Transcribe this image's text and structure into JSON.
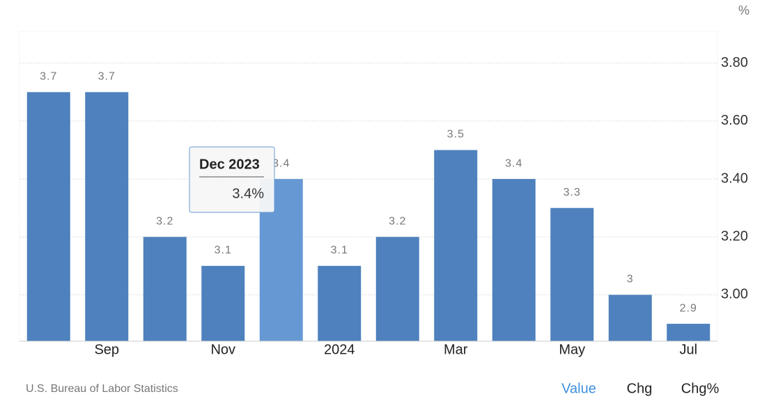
{
  "chart_data": {
    "type": "bar",
    "unit": "%",
    "categories": [
      null,
      "Sep",
      null,
      "Nov",
      null,
      "2024",
      null,
      "Mar",
      null,
      "May",
      null,
      "Jul"
    ],
    "values": [
      3.7,
      3.7,
      3.2,
      3.1,
      3.4,
      3.1,
      3.2,
      3.5,
      3.4,
      3.3,
      3,
      2.9
    ],
    "colors": [
      "#4e81bd",
      "#4e81bd",
      "#4e81bd",
      "#4e81bd",
      "#6699d4",
      "#4e81bd",
      "#4e81bd",
      "#4e81bd",
      "#4e81bd",
      "#4e81bd",
      "#4e81bd",
      "#4e81bd"
    ],
    "ylim": [
      2.84,
      3.91
    ],
    "yticks": [
      {
        "value": 3.0,
        "label": "3.00"
      },
      {
        "value": 3.2,
        "label": "3.20"
      },
      {
        "value": 3.4,
        "label": "3.40"
      },
      {
        "value": 3.6,
        "label": "3.60"
      },
      {
        "value": 3.8,
        "label": "3.80"
      }
    ],
    "grid": true,
    "tooltip": {
      "title": "Dec 2023",
      "value": "3.4%"
    },
    "source": "U.S. Bureau of Labor Statistics",
    "buttons": [
      "Value",
      "Chg",
      "Chg%"
    ]
  }
}
